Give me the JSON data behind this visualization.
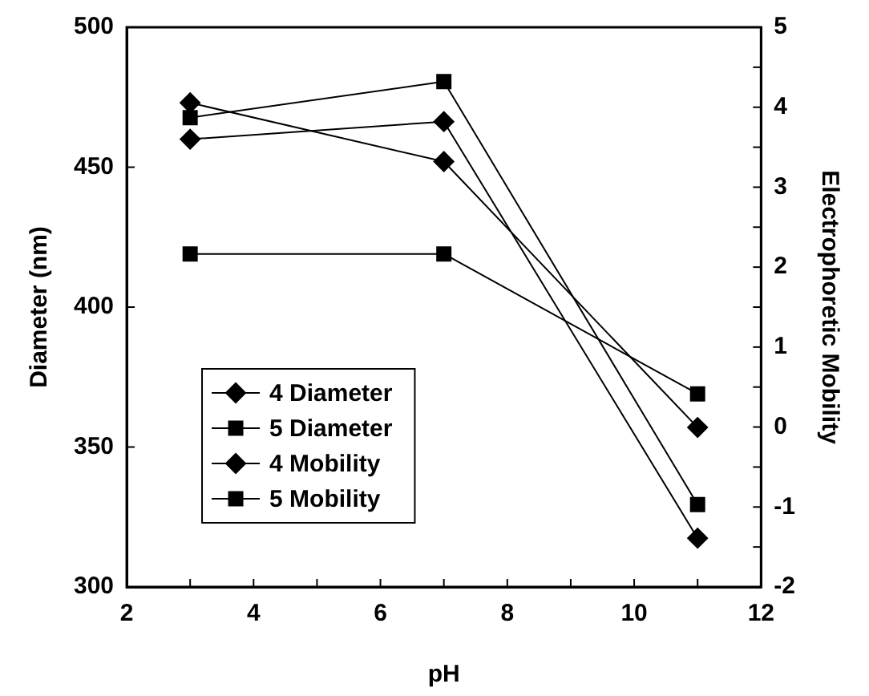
{
  "chart_data": {
    "type": "line",
    "xlabel": "pH",
    "ylabel": "Diameter (nm)",
    "y2label": "Electrophoretic Mobility",
    "x": [
      3,
      7,
      11
    ],
    "xlim": [
      2,
      12
    ],
    "xticks": [
      2,
      {
        "value": 3,
        "label": null
      },
      4,
      {
        "value": 5,
        "label": null
      },
      6,
      {
        "value": 7,
        "label": null
      },
      8,
      {
        "value": 9,
        "label": null
      },
      10,
      {
        "value": 11,
        "label": null
      },
      12
    ],
    "ylim": [
      300,
      500
    ],
    "yticks": [
      300,
      350,
      400,
      450,
      500
    ],
    "y2lim": [
      -2,
      5
    ],
    "y2ticks": [
      -2,
      {
        "value": -1.5,
        "label": null
      },
      -1,
      {
        "value": -0.5,
        "label": null
      },
      0,
      {
        "value": 0.5,
        "label": null
      },
      1,
      {
        "value": 1.5,
        "label": null
      },
      2,
      {
        "value": 2.5,
        "label": null
      },
      3,
      {
        "value": 3.5,
        "label": null
      },
      4,
      {
        "value": 4.5,
        "label": null
      },
      5
    ],
    "grid": false,
    "legend": "bottom left",
    "line_style": "solid",
    "series": [
      {
        "name": "4 Diameter",
        "color": "#000000",
        "marker": "diamond",
        "values": [
          473,
          452,
          357
        ]
      },
      {
        "name": "5 Diameter",
        "color": "#000000",
        "marker": "square",
        "values": [
          419,
          419,
          369
        ]
      },
      {
        "name": "4 Mobility",
        "color": "#000000",
        "marker": "diamond",
        "axis": "y2",
        "values": [
          3.6,
          3.82,
          -1.39
        ]
      },
      {
        "name": "5 Mobility",
        "color": "#000000",
        "marker": "square",
        "axis": "y2",
        "values": [
          3.87,
          4.32,
          -0.97
        ]
      }
    ]
  }
}
